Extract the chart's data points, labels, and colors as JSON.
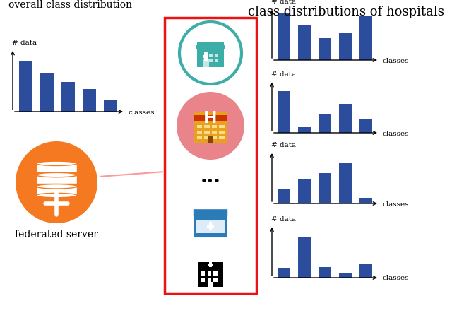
{
  "title": "class distributions of hospitals",
  "overall_label": "overall class distribution",
  "server_label": "federated server",
  "bar_color": "#2B4D9C",
  "overall_bars": [
    0.85,
    0.65,
    0.5,
    0.38,
    0.2
  ],
  "hospital_bars": [
    [
      0.95,
      0.7,
      0.45,
      0.55,
      0.88
    ],
    [
      0.85,
      0.12,
      0.38,
      0.58,
      0.28
    ],
    [
      0.28,
      0.48,
      0.62,
      0.82,
      0.12
    ],
    [
      0.18,
      0.82,
      0.22,
      0.08,
      0.28
    ]
  ],
  "red_box_color": "#EE1111",
  "arrow_color": "#FF9999",
  "server_orange": "#F47920",
  "hosp1_teal": "#3DADA8",
  "hosp2_red_bg": "#E8848A",
  "hosp2_red_dark": "#CC2222",
  "hosp3_blue": "#2B7BB8",
  "bg_color": "#FFFFFF",
  "title_fontsize": 13,
  "label_fontsize": 10,
  "axis_label_fontsize": 8
}
